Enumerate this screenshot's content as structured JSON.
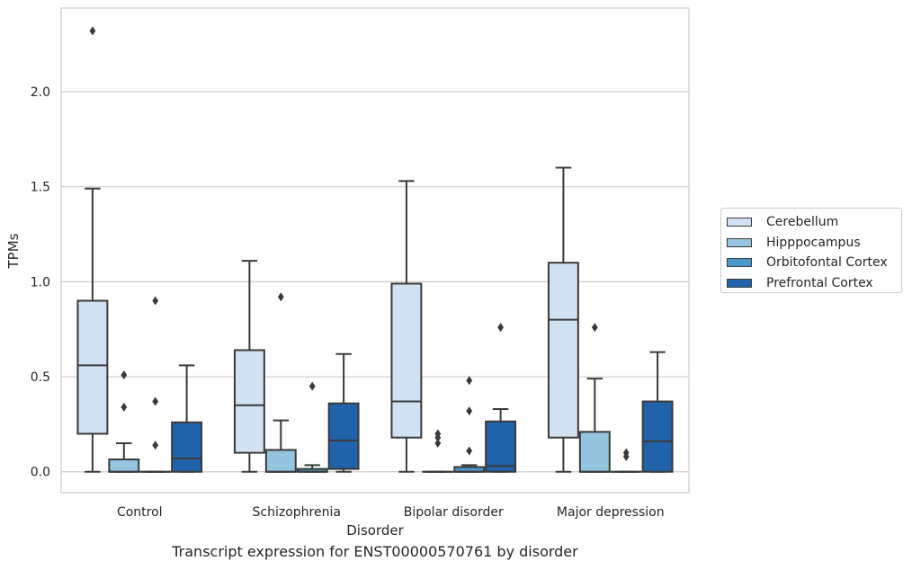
{
  "chart_data": {
    "type": "box",
    "xlabel": "Disorder",
    "ylabel": "TPMs",
    "ylim": [
      -0.11,
      2.44
    ],
    "y_ticks": [
      "0.0",
      "0.5",
      "1.0",
      "1.5",
      "2.0"
    ],
    "y_tick_values": [
      0.0,
      0.5,
      1.0,
      1.5,
      2.0
    ],
    "grid": "horizontal",
    "legend_position": "right",
    "categories": [
      "Control",
      "Schizophrenia",
      "Bipolar disorder",
      "Major depression"
    ],
    "series": [
      {
        "name": "Cerebellum",
        "color": "#d0e1f2",
        "boxes": [
          {
            "whislo": 0.0,
            "q1": 0.2,
            "med": 0.56,
            "q3": 0.9,
            "whishi": 1.49,
            "fliers": [
              2.32
            ]
          },
          {
            "whislo": 0.0,
            "q1": 0.1,
            "med": 0.35,
            "q3": 0.64,
            "whishi": 1.11,
            "fliers": []
          },
          {
            "whislo": 0.0,
            "q1": 0.18,
            "med": 0.37,
            "q3": 0.99,
            "whishi": 1.53,
            "fliers": []
          },
          {
            "whislo": 0.0,
            "q1": 0.18,
            "med": 0.8,
            "q3": 1.1,
            "whishi": 1.6,
            "fliers": []
          }
        ]
      },
      {
        "name": "Hipppocampus",
        "color": "#94c4df",
        "boxes": [
          {
            "whislo": 0.0,
            "q1": 0.0,
            "med": 0.0,
            "q3": 0.065,
            "whishi": 0.15,
            "fliers": [
              0.34,
              0.51
            ]
          },
          {
            "whislo": 0.0,
            "q1": 0.0,
            "med": 0.0,
            "q3": 0.115,
            "whishi": 0.27,
            "fliers": [
              0.92
            ]
          },
          {
            "whislo": 0.0,
            "q1": 0.0,
            "med": 0.0,
            "q3": 0.0,
            "whishi": 0.0,
            "fliers": [
              0.15,
              0.18,
              0.2
            ]
          },
          {
            "whislo": 0.0,
            "q1": 0.0,
            "med": 0.0,
            "q3": 0.21,
            "whishi": 0.49,
            "fliers": [
              0.76
            ]
          }
        ]
      },
      {
        "name": "Orbitofontal Cortex",
        "color": "#4a98c9",
        "boxes": [
          {
            "whislo": 0.0,
            "q1": 0.0,
            "med": 0.0,
            "q3": 0.0,
            "whishi": 0.0,
            "fliers": [
              0.14,
              0.37,
              0.9
            ]
          },
          {
            "whislo": 0.0,
            "q1": 0.0,
            "med": 0.0,
            "q3": 0.015,
            "whishi": 0.035,
            "fliers": [
              0.45
            ]
          },
          {
            "whislo": 0.0,
            "q1": 0.0,
            "med": 0.0,
            "q3": 0.025,
            "whishi": 0.035,
            "fliers": [
              0.11,
              0.32,
              0.48
            ]
          },
          {
            "whislo": 0.0,
            "q1": 0.0,
            "med": 0.0,
            "q3": 0.0,
            "whishi": 0.0,
            "fliers": [
              0.08,
              0.1
            ]
          }
        ]
      },
      {
        "name": "Prefrontal Cortex",
        "color": "#2163aa",
        "boxes": [
          {
            "whislo": 0.0,
            "q1": 0.0,
            "med": 0.07,
            "q3": 0.26,
            "whishi": 0.56,
            "fliers": []
          },
          {
            "whislo": 0.0,
            "q1": 0.015,
            "med": 0.165,
            "q3": 0.36,
            "whishi": 0.62,
            "fliers": []
          },
          {
            "whislo": 0.0,
            "q1": 0.0,
            "med": 0.03,
            "q3": 0.265,
            "whishi": 0.33,
            "fliers": [
              0.76
            ]
          },
          {
            "whislo": 0.0,
            "q1": 0.0,
            "med": 0.16,
            "q3": 0.37,
            "whishi": 0.63,
            "fliers": []
          }
        ]
      }
    ]
  },
  "caption": "Transcript expression for ENST00000570761 by disorder"
}
